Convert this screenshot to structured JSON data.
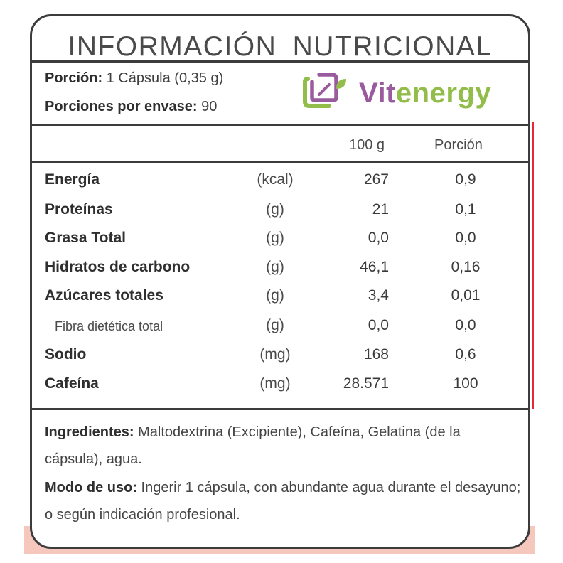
{
  "title": "INFORMACIÓN  NUTRICIONAL",
  "serving": {
    "portion_label": "Porción:",
    "portion_value": " 1 Cápsula (0,35 g)",
    "per_container_label": "Porciones por envase:",
    "per_container_value": " 90"
  },
  "brand": {
    "name_part1": "Vit",
    "name_part2": "energy",
    "colors": {
      "purple": "#9a5a9e",
      "green": "#93bd4a"
    }
  },
  "columns": {
    "per100": "100 g",
    "portion": "Porción"
  },
  "nutrients": [
    {
      "name": "Energía",
      "unit": "(kcal)",
      "per100": "267",
      "portion": "0,9"
    },
    {
      "name": "Proteínas",
      "unit": "(g)",
      "per100": "21",
      "portion": "0,1"
    },
    {
      "name": "Grasa Total",
      "unit": "(g)",
      "per100": "0,0",
      "portion": "0,0"
    },
    {
      "name": "Hidratos de carbono",
      "unit": "(g)",
      "per100": "46,1",
      "portion": "0,16"
    },
    {
      "name": "Azúcares totales",
      "unit": "(g)",
      "per100": "3,4",
      "portion": "0,01"
    },
    {
      "name": "Fibra dietética total",
      "unit": "(g)",
      "per100": "0,0",
      "portion": "0,0"
    },
    {
      "name": "Sodio",
      "unit": "(mg)",
      "per100": "168",
      "portion": "0,6"
    },
    {
      "name": "Cafeína",
      "unit": "(mg)",
      "per100": "28.571",
      "portion": "100"
    }
  ],
  "ingredients": {
    "label": "Ingredientes:",
    "text": " Maltodextrina (Excipiente), Cafeína, Gelatina (de la cápsula), agua."
  },
  "usage": {
    "label": "Modo de uso:",
    "text": " Ingerir 1 cápsula, con abundante agua durante el desayuno; o según indicación profesional."
  }
}
